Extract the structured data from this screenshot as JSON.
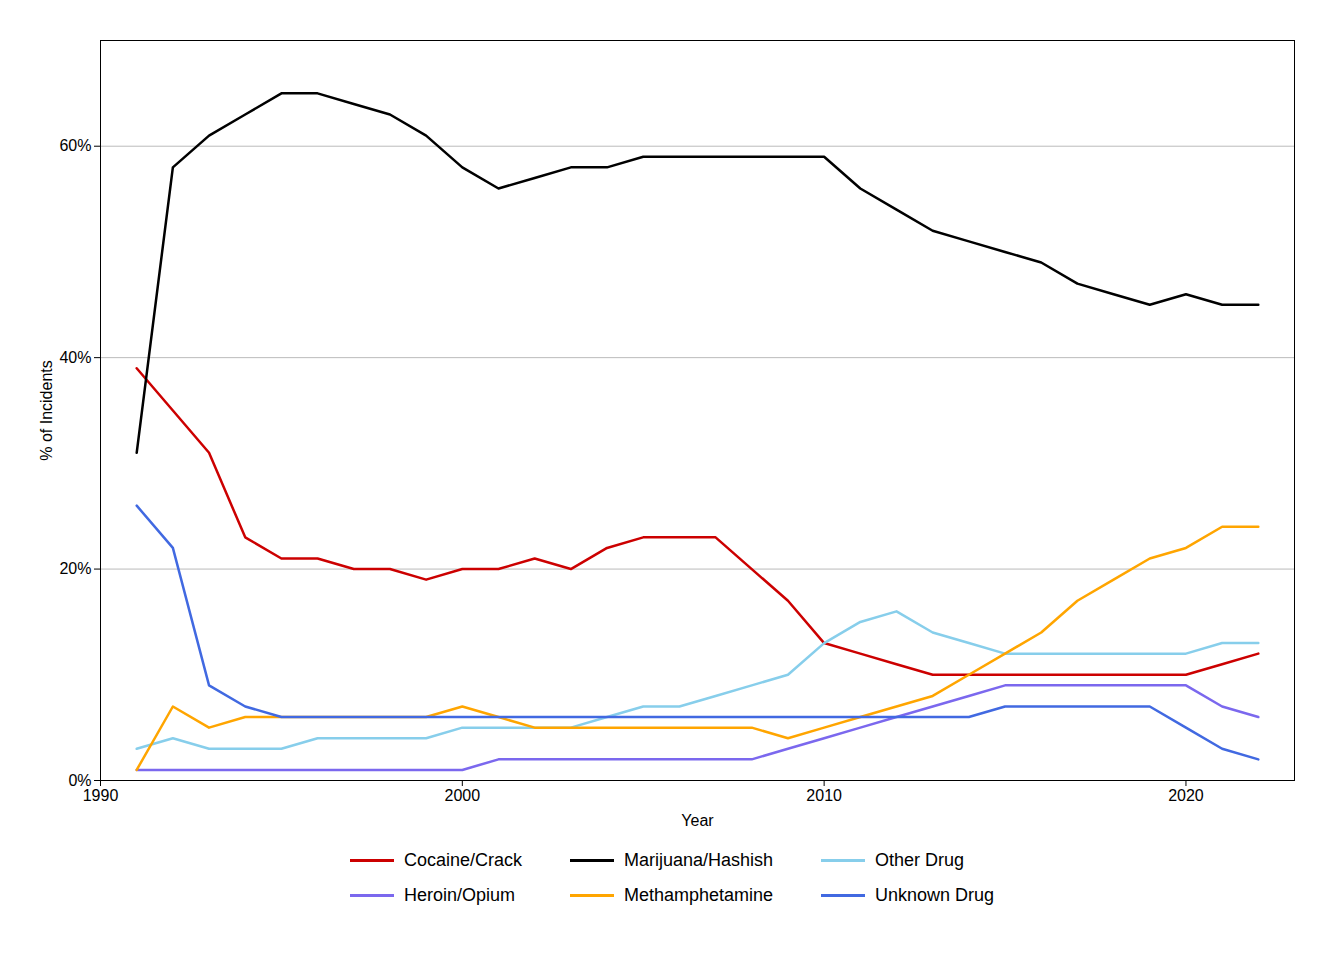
{
  "chart_data": {
    "type": "line",
    "xlabel": "Year",
    "ylabel": "% of Incidents",
    "x": [
      1991,
      1992,
      1993,
      1994,
      1995,
      1996,
      1997,
      1998,
      1999,
      2000,
      2001,
      2002,
      2003,
      2004,
      2005,
      2006,
      2007,
      2008,
      2009,
      2010,
      2011,
      2012,
      2013,
      2014,
      2015,
      2016,
      2017,
      2018,
      2019,
      2020,
      2021,
      2022
    ],
    "series": [
      {
        "name": "Cocaine/Crack",
        "color": "#cc0000",
        "values": [
          39,
          35,
          31,
          23,
          21,
          21,
          20,
          20,
          19,
          20,
          20,
          21,
          20,
          22,
          23,
          23,
          23,
          20,
          17,
          13,
          12,
          11,
          10,
          10,
          10,
          10,
          10,
          10,
          10,
          10,
          11,
          12
        ]
      },
      {
        "name": "Marijuana/Hashish",
        "color": "#000000",
        "values": [
          31,
          58,
          61,
          63,
          65,
          65,
          64,
          63,
          61,
          58,
          56,
          57,
          58,
          58,
          59,
          59,
          59,
          59,
          59,
          59,
          56,
          54,
          52,
          51,
          50,
          49,
          47,
          46,
          45,
          46,
          45,
          45
        ]
      },
      {
        "name": "Other Drug",
        "color": "#87ceeb",
        "values": [
          3,
          4,
          3,
          3,
          3,
          4,
          4,
          4,
          4,
          5,
          5,
          5,
          5,
          6,
          7,
          7,
          8,
          9,
          10,
          13,
          15,
          16,
          14,
          13,
          12,
          12,
          12,
          12,
          12,
          12,
          13,
          13
        ]
      },
      {
        "name": "Heroin/Opium",
        "color": "#7b68ee",
        "values": [
          1,
          1,
          1,
          1,
          1,
          1,
          1,
          1,
          1,
          1,
          2,
          2,
          2,
          2,
          2,
          2,
          2,
          2,
          3,
          4,
          5,
          6,
          7,
          8,
          9,
          9,
          9,
          9,
          9,
          9,
          7,
          6
        ]
      },
      {
        "name": "Methamphetamine",
        "color": "#ffa500",
        "values": [
          1,
          7,
          5,
          6,
          6,
          6,
          6,
          6,
          6,
          7,
          6,
          5,
          5,
          5,
          5,
          5,
          5,
          5,
          4,
          5,
          6,
          7,
          8,
          10,
          12,
          14,
          17,
          19,
          21,
          22,
          24,
          24
        ]
      },
      {
        "name": "Unknown Drug",
        "color": "#4169e1",
        "values": [
          26,
          22,
          9,
          7,
          6,
          6,
          6,
          6,
          6,
          6,
          6,
          6,
          6,
          6,
          6,
          6,
          6,
          6,
          6,
          6,
          6,
          6,
          6,
          6,
          7,
          7,
          7,
          7,
          7,
          5,
          3,
          2
        ]
      }
    ],
    "xlim": [
      1990,
      2023
    ],
    "xticks": [
      1990,
      2000,
      2010,
      2020
    ],
    "ylim": [
      0,
      70
    ],
    "yticks": [
      {
        "value": 0,
        "label": "0%"
      },
      {
        "value": 20,
        "label": "20%"
      },
      {
        "value": 40,
        "label": "40%"
      },
      {
        "value": 60,
        "label": "60%"
      }
    ],
    "grid": true,
    "legend": "bottom"
  }
}
